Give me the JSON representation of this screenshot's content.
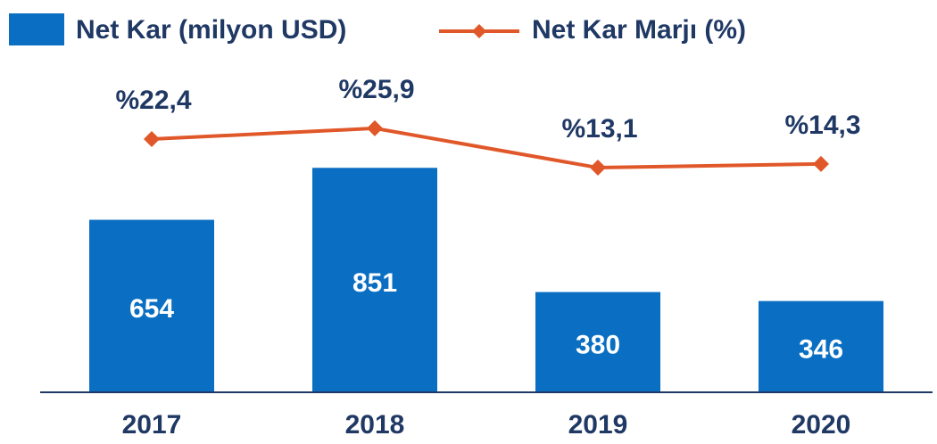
{
  "chart_data": {
    "type": "combo",
    "categories": [
      "2017",
      "2018",
      "2019",
      "2020"
    ],
    "series": [
      {
        "name": "Net Kar (milyon USD)",
        "type": "bar",
        "color": "#0a6fc2",
        "values": [
          654,
          851,
          380,
          346
        ]
      },
      {
        "name": "Net Kar Marjı (%)",
        "type": "line",
        "axis": "y2",
        "color": "#e0582a",
        "values": [
          22.4,
          25.9,
          13.1,
          14.3
        ],
        "value_labels": [
          "%22,4",
          "%25,9",
          "%13,1",
          "%14,3"
        ]
      }
    ],
    "ylim": [
      0,
      1200
    ],
    "y2lim": [
      -60,
      43
    ],
    "legend": "top-left"
  }
}
